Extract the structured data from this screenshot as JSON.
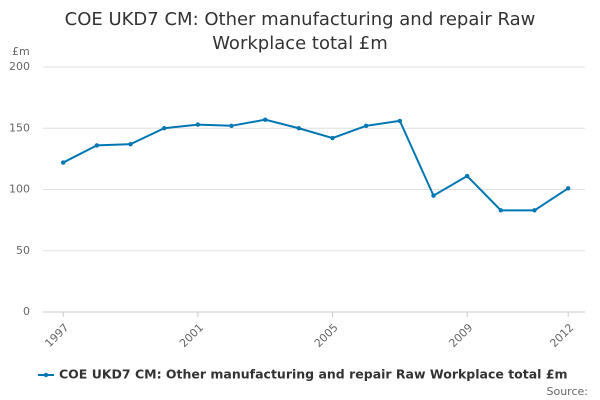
{
  "chart_data": {
    "type": "line",
    "title": "COE UKD7 CM: Other manufacturing and repair Raw Workplace total £m",
    "y_unit": "£m",
    "source": "Source:",
    "x": [
      1997,
      1998,
      1999,
      2000,
      2001,
      2002,
      2003,
      2004,
      2005,
      2006,
      2007,
      2008,
      2009,
      2010,
      2011,
      2012
    ],
    "series": [
      {
        "name": "COE UKD7 CM: Other manufacturing and repair Raw Workplace total £m",
        "color": "#0077b3",
        "values": [
          122,
          136,
          137,
          150,
          153,
          152,
          157,
          150,
          142,
          152,
          156,
          95,
          111,
          83,
          83,
          101
        ]
      }
    ],
    "xlim": [
      1996.4,
      2012.5
    ],
    "xticks": [
      1997,
      2001,
      2005,
      2009,
      2012
    ],
    "ylim": [
      0,
      200
    ],
    "yticks": [
      0,
      50,
      100,
      150,
      200
    ],
    "grid": true
  }
}
